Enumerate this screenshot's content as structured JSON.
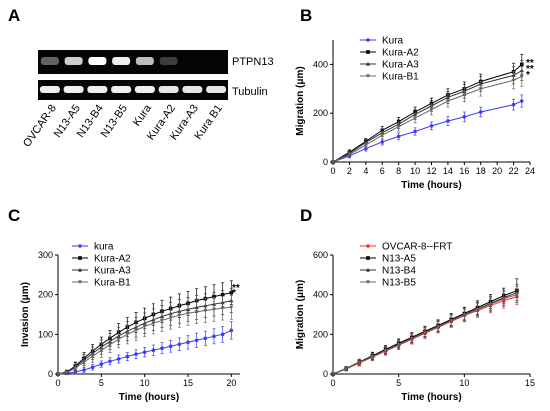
{
  "panels": {
    "a": "A",
    "b": "B",
    "c": "C",
    "d": "D"
  },
  "gel": {
    "bands_right_labels": [
      "PTPN13",
      "Tubulin"
    ],
    "lanes": [
      "OVCAR-8",
      "N13-A5",
      "N13-B4",
      "N13-B5",
      "Kura",
      "Kura-A2",
      "Kura-A3",
      "Kura B1"
    ],
    "ptpn13_intensity": [
      0.45,
      0.85,
      1.0,
      0.95,
      0.8,
      0.25,
      0.02,
      0.02
    ],
    "tubulin_intensity": [
      0.9,
      0.9,
      0.9,
      0.9,
      0.9,
      0.85,
      0.85,
      0.85
    ]
  },
  "colors": {
    "blue": "#3b3bff",
    "black": "#000000",
    "red": "#ff2b2b",
    "gray": "#555555"
  },
  "chart_data": [
    {
      "id": "B",
      "type": "line",
      "xlabel": "Time (hours)",
      "ylabel": "Migration (μm)",
      "xlim": [
        0,
        24
      ],
      "ylim": [
        0,
        500
      ],
      "xticks": [
        0,
        2,
        4,
        6,
        8,
        10,
        12,
        14,
        16,
        18,
        20,
        22,
        24
      ],
      "yticks": [
        0,
        200,
        400
      ],
      "x": [
        0,
        2,
        4,
        6,
        8,
        10,
        12,
        14,
        16,
        18,
        22,
        23
      ],
      "series": [
        {
          "name": "Kura",
          "color": "#3b3bff",
          "values": [
            0,
            25,
            55,
            82,
            105,
            125,
            148,
            168,
            185,
            205,
            235,
            250
          ],
          "err": [
            0,
            8,
            10,
            12,
            14,
            15,
            16,
            18,
            20,
            20,
            22,
            25
          ]
        },
        {
          "name": "Kura-A2",
          "color": "#000000",
          "values": [
            0,
            40,
            85,
            130,
            165,
            205,
            240,
            275,
            300,
            330,
            370,
            400
          ],
          "err": [
            0,
            10,
            12,
            15,
            18,
            20,
            22,
            25,
            28,
            30,
            35,
            40
          ]
        },
        {
          "name": "Kura-A3",
          "color": "#333333",
          "values": [
            0,
            35,
            80,
            120,
            155,
            195,
            230,
            265,
            290,
            320,
            355,
            375
          ],
          "err": [
            0,
            10,
            12,
            15,
            18,
            20,
            22,
            25,
            28,
            30,
            35,
            40
          ]
        },
        {
          "name": "Kura-B1",
          "color": "#666666",
          "values": [
            0,
            30,
            70,
            110,
            145,
            180,
            215,
            250,
            275,
            300,
            335,
            350
          ],
          "err": [
            0,
            10,
            12,
            15,
            18,
            20,
            22,
            25,
            28,
            30,
            35,
            40
          ]
        }
      ],
      "annotations": [
        "**",
        "**",
        "*"
      ]
    },
    {
      "id": "C",
      "type": "line",
      "xlabel": "Time (hours)",
      "ylabel": "Invasion (μm)",
      "xlim": [
        0,
        21
      ],
      "ylim": [
        0,
        300
      ],
      "xticks": [
        0,
        5,
        10,
        15,
        20
      ],
      "yticks": [
        0,
        100,
        200,
        300
      ],
      "x": [
        0,
        1,
        2,
        3,
        4,
        5,
        6,
        7,
        8,
        9,
        10,
        11,
        12,
        13,
        14,
        15,
        16,
        17,
        18,
        19,
        20
      ],
      "series": [
        {
          "name": "kura",
          "color": "#3b3bff",
          "values": [
            0,
            2,
            5,
            10,
            17,
            25,
            32,
            38,
            44,
            50,
            55,
            60,
            65,
            70,
            75,
            80,
            85,
            90,
            95,
            100,
            110
          ],
          "err": [
            0,
            3,
            5,
            6,
            7,
            8,
            9,
            10,
            10,
            11,
            12,
            13,
            14,
            15,
            16,
            17,
            18,
            18,
            19,
            20,
            22
          ]
        },
        {
          "name": "Kura-A2",
          "color": "#000000",
          "values": [
            0,
            5,
            20,
            40,
            58,
            75,
            90,
            105,
            118,
            130,
            140,
            150,
            158,
            165,
            172,
            178,
            185,
            190,
            195,
            200,
            205
          ],
          "err": [
            0,
            5,
            10,
            14,
            16,
            18,
            20,
            22,
            24,
            25,
            26,
            27,
            28,
            29,
            30,
            30,
            30,
            30,
            30,
            30,
            30
          ]
        },
        {
          "name": "Kura-A3",
          "color": "#333333",
          "values": [
            0,
            4,
            18,
            35,
            52,
            68,
            82,
            96,
            108,
            118,
            128,
            137,
            145,
            152,
            158,
            163,
            168,
            172,
            176,
            180,
            185
          ],
          "err": [
            0,
            5,
            10,
            14,
            16,
            18,
            20,
            22,
            24,
            25,
            26,
            27,
            28,
            29,
            30,
            30,
            30,
            30,
            30,
            30,
            30
          ]
        },
        {
          "name": "Kura-B1",
          "color": "#666666",
          "values": [
            0,
            3,
            15,
            30,
            45,
            60,
            74,
            88,
            100,
            110,
            120,
            128,
            135,
            142,
            148,
            153,
            157,
            160,
            163,
            166,
            168
          ],
          "err": [
            0,
            5,
            10,
            14,
            16,
            18,
            20,
            22,
            24,
            25,
            26,
            27,
            28,
            29,
            30,
            30,
            30,
            30,
            30,
            30,
            30
          ]
        }
      ],
      "annotations": [
        "**",
        "*"
      ]
    },
    {
      "id": "D",
      "type": "line",
      "xlabel": "Time (hours)",
      "ylabel": "Migration (μm)",
      "xlim": [
        0,
        15
      ],
      "ylim": [
        0,
        600
      ],
      "xticks": [
        0,
        5,
        10,
        15
      ],
      "yticks": [
        0,
        200,
        400,
        600
      ],
      "x": [
        0,
        1,
        2,
        3,
        4,
        5,
        6,
        7,
        8,
        9,
        10,
        11,
        12,
        13,
        14
      ],
      "series": [
        {
          "name": "OVCAR-8--FRT",
          "color": "#ff2b2b",
          "values": [
            0,
            25,
            55,
            85,
            115,
            145,
            175,
            205,
            235,
            265,
            295,
            320,
            345,
            370,
            390
          ],
          "err": [
            0,
            10,
            15,
            18,
            20,
            22,
            24,
            26,
            28,
            30,
            32,
            34,
            36,
            38,
            40
          ]
        },
        {
          "name": "N13-A5",
          "color": "#000000",
          "values": [
            0,
            28,
            60,
            92,
            124,
            155,
            185,
            215,
            245,
            275,
            305,
            335,
            365,
            395,
            420
          ],
          "err": [
            0,
            10,
            15,
            18,
            20,
            22,
            24,
            26,
            28,
            30,
            32,
            34,
            36,
            38,
            60
          ]
        },
        {
          "name": "N13-B4",
          "color": "#333333",
          "values": [
            0,
            27,
            58,
            89,
            120,
            150,
            180,
            210,
            240,
            270,
            300,
            328,
            356,
            385,
            410
          ],
          "err": [
            0,
            10,
            15,
            18,
            20,
            22,
            24,
            26,
            28,
            30,
            32,
            34,
            36,
            38,
            40
          ]
        },
        {
          "name": "N13-B5",
          "color": "#666666",
          "values": [
            0,
            26,
            57,
            87,
            118,
            148,
            178,
            208,
            238,
            268,
            298,
            325,
            352,
            380,
            400
          ],
          "err": [
            0,
            10,
            15,
            18,
            20,
            22,
            24,
            26,
            28,
            30,
            32,
            34,
            36,
            38,
            40
          ]
        }
      ]
    }
  ]
}
